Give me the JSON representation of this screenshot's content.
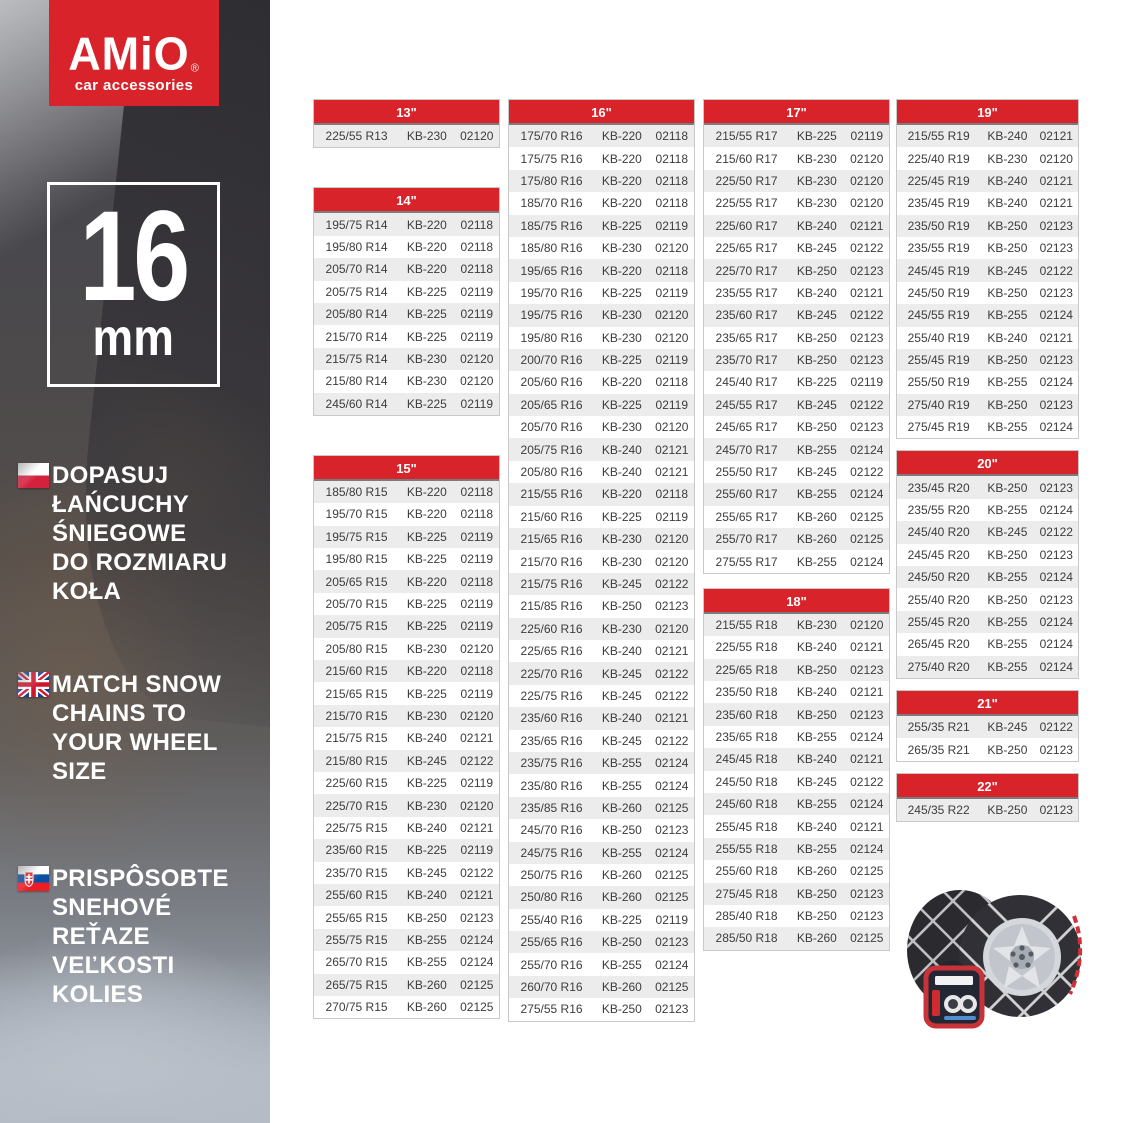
{
  "colors": {
    "brand_red": "#d8232b",
    "row_alt": "#ececec",
    "cell_text": "#3c3c3c",
    "table_border": "#c9c9c9"
  },
  "logo": {
    "name": "AMiO",
    "registered": "®",
    "subtitle": "car accessories"
  },
  "badge": {
    "value": "16",
    "unit": "mm"
  },
  "sidebar": {
    "messages": [
      {
        "lang": "pl",
        "flag": "poland-flag",
        "lines": [
          "DOPASUJ",
          "ŁAŃCUCHY",
          "ŚNIEGOWE",
          "DO ROZMIARU",
          "KOŁA"
        ]
      },
      {
        "lang": "en",
        "flag": "uk-flag",
        "lines": [
          "MATCH SNOW",
          "CHAINS TO",
          "YOUR WHEEL",
          "SIZE"
        ]
      },
      {
        "lang": "sk",
        "flag": "slovakia-flag",
        "lines": [
          "PRISPÔSOBTE",
          "SNEHOVÉ",
          "REŤAZE",
          "VEĽKOSTI",
          "KOLIES"
        ]
      }
    ]
  },
  "tables": [
    {
      "title": "13\"",
      "column": 1,
      "rows": [
        [
          "225/55 R13",
          "KB-230",
          "02120"
        ]
      ]
    },
    {
      "title": "14\"",
      "column": 1,
      "rows": [
        [
          "195/75 R14",
          "KB-220",
          "02118"
        ],
        [
          "195/80 R14",
          "KB-220",
          "02118"
        ],
        [
          "205/70 R14",
          "KB-220",
          "02118"
        ],
        [
          "205/75 R14",
          "KB-225",
          "02119"
        ],
        [
          "205/80 R14",
          "KB-225",
          "02119"
        ],
        [
          "215/70 R14",
          "KB-225",
          "02119"
        ],
        [
          "215/75 R14",
          "KB-230",
          "02120"
        ],
        [
          "215/80 R14",
          "KB-230",
          "02120"
        ],
        [
          "245/60 R14",
          "KB-225",
          "02119"
        ]
      ]
    },
    {
      "title": "15\"",
      "column": 1,
      "rows": [
        [
          "185/80 R15",
          "KB-220",
          "02118"
        ],
        [
          "195/70 R15",
          "KB-220",
          "02118"
        ],
        [
          "195/75 R15",
          "KB-225",
          "02119"
        ],
        [
          "195/80 R15",
          "KB-225",
          "02119"
        ],
        [
          "205/65 R15",
          "KB-220",
          "02118"
        ],
        [
          "205/70 R15",
          "KB-225",
          "02119"
        ],
        [
          "205/75 R15",
          "KB-225",
          "02119"
        ],
        [
          "205/80 R15",
          "KB-230",
          "02120"
        ],
        [
          "215/60 R15",
          "KB-220",
          "02118"
        ],
        [
          "215/65 R15",
          "KB-225",
          "02119"
        ],
        [
          "215/70 R15",
          "KB-230",
          "02120"
        ],
        [
          "215/75 R15",
          "KB-240",
          "02121"
        ],
        [
          "215/80 R15",
          "KB-245",
          "02122"
        ],
        [
          "225/60 R15",
          "KB-225",
          "02119"
        ],
        [
          "225/70 R15",
          "KB-230",
          "02120"
        ],
        [
          "225/75 R15",
          "KB-240",
          "02121"
        ],
        [
          "235/60 R15",
          "KB-225",
          "02119"
        ],
        [
          "235/70 R15",
          "KB-245",
          "02122"
        ],
        [
          "255/60 R15",
          "KB-240",
          "02121"
        ],
        [
          "255/65 R15",
          "KB-250",
          "02123"
        ],
        [
          "255/75 R15",
          "KB-255",
          "02124"
        ],
        [
          "265/70 R15",
          "KB-255",
          "02124"
        ],
        [
          "265/75 R15",
          "KB-260",
          "02125"
        ],
        [
          "270/75 R15",
          "KB-260",
          "02125"
        ]
      ]
    },
    {
      "title": "16\"",
      "column": 2,
      "rows": [
        [
          "175/70 R16",
          "KB-220",
          "02118"
        ],
        [
          "175/75 R16",
          "KB-220",
          "02118"
        ],
        [
          "175/80 R16",
          "KB-220",
          "02118"
        ],
        [
          "185/70 R16",
          "KB-220",
          "02118"
        ],
        [
          "185/75 R16",
          "KB-225",
          "02119"
        ],
        [
          "185/80 R16",
          "KB-230",
          "02120"
        ],
        [
          "195/65 R16",
          "KB-220",
          "02118"
        ],
        [
          "195/70 R16",
          "KB-225",
          "02119"
        ],
        [
          "195/75 R16",
          "KB-230",
          "02120"
        ],
        [
          "195/80 R16",
          "KB-230",
          "02120"
        ],
        [
          "200/70 R16",
          "KB-225",
          "02119"
        ],
        [
          "205/60 R16",
          "KB-220",
          "02118"
        ],
        [
          "205/65 R16",
          "KB-225",
          "02119"
        ],
        [
          "205/70 R16",
          "KB-230",
          "02120"
        ],
        [
          "205/75 R16",
          "KB-240",
          "02121"
        ],
        [
          "205/80 R16",
          "KB-240",
          "02121"
        ],
        [
          "215/55 R16",
          "KB-220",
          "02118"
        ],
        [
          "215/60 R16",
          "KB-225",
          "02119"
        ],
        [
          "215/65 R16",
          "KB-230",
          "02120"
        ],
        [
          "215/70 R16",
          "KB-230",
          "02120"
        ],
        [
          "215/75 R16",
          "KB-245",
          "02122"
        ],
        [
          "215/85 R16",
          "KB-250",
          "02123"
        ],
        [
          "225/60 R16",
          "KB-230",
          "02120"
        ],
        [
          "225/65 R16",
          "KB-240",
          "02121"
        ],
        [
          "225/70 R16",
          "KB-245",
          "02122"
        ],
        [
          "225/75 R16",
          "KB-245",
          "02122"
        ],
        [
          "235/60 R16",
          "KB-240",
          "02121"
        ],
        [
          "235/65 R16",
          "KB-245",
          "02122"
        ],
        [
          "235/75 R16",
          "KB-255",
          "02124"
        ],
        [
          "235/80 R16",
          "KB-255",
          "02124"
        ],
        [
          "235/85 R16",
          "KB-260",
          "02125"
        ],
        [
          "245/70 R16",
          "KB-250",
          "02123"
        ],
        [
          "245/75 R16",
          "KB-255",
          "02124"
        ],
        [
          "250/75 R16",
          "KB-260",
          "02125"
        ],
        [
          "250/80 R16",
          "KB-260",
          "02125"
        ],
        [
          "255/40 R16",
          "KB-225",
          "02119"
        ],
        [
          "255/65 R16",
          "KB-250",
          "02123"
        ],
        [
          "255/70 R16",
          "KB-255",
          "02124"
        ],
        [
          "260/70 R16",
          "KB-260",
          "02125"
        ],
        [
          "275/55 R16",
          "KB-250",
          "02123"
        ]
      ]
    },
    {
      "title": "17\"",
      "column": 3,
      "rows": [
        [
          "215/55 R17",
          "KB-225",
          "02119"
        ],
        [
          "215/60 R17",
          "KB-230",
          "02120"
        ],
        [
          "225/50 R17",
          "KB-230",
          "02120"
        ],
        [
          "225/55 R17",
          "KB-230",
          "02120"
        ],
        [
          "225/60 R17",
          "KB-240",
          "02121"
        ],
        [
          "225/65 R17",
          "KB-245",
          "02122"
        ],
        [
          "225/70 R17",
          "KB-250",
          "02123"
        ],
        [
          "235/55 R17",
          "KB-240",
          "02121"
        ],
        [
          "235/60 R17",
          "KB-245",
          "02122"
        ],
        [
          "235/65 R17",
          "KB-250",
          "02123"
        ],
        [
          "235/70 R17",
          "KB-250",
          "02123"
        ],
        [
          "245/40 R17",
          "KB-225",
          "02119"
        ],
        [
          "245/55 R17",
          "KB-245",
          "02122"
        ],
        [
          "245/65 R17",
          "KB-250",
          "02123"
        ],
        [
          "245/70 R17",
          "KB-255",
          "02124"
        ],
        [
          "255/50 R17",
          "KB-245",
          "02122"
        ],
        [
          "255/60 R17",
          "KB-255",
          "02124"
        ],
        [
          "255/65 R17",
          "KB-260",
          "02125"
        ],
        [
          "255/70 R17",
          "KB-260",
          "02125"
        ],
        [
          "275/55 R17",
          "KB-255",
          "02124"
        ]
      ]
    },
    {
      "title": "18\"",
      "column": 3,
      "rows": [
        [
          "215/55 R18",
          "KB-230",
          "02120"
        ],
        [
          "225/55 R18",
          "KB-240",
          "02121"
        ],
        [
          "225/65 R18",
          "KB-250",
          "02123"
        ],
        [
          "235/50 R18",
          "KB-240",
          "02121"
        ],
        [
          "235/60 R18",
          "KB-250",
          "02123"
        ],
        [
          "235/65 R18",
          "KB-255",
          "02124"
        ],
        [
          "245/45 R18",
          "KB-240",
          "02121"
        ],
        [
          "245/50 R18",
          "KB-245",
          "02122"
        ],
        [
          "245/60 R18",
          "KB-255",
          "02124"
        ],
        [
          "255/45 R18",
          "KB-240",
          "02121"
        ],
        [
          "255/55 R18",
          "KB-255",
          "02124"
        ],
        [
          "255/60 R18",
          "KB-260",
          "02125"
        ],
        [
          "275/45 R18",
          "KB-250",
          "02123"
        ],
        [
          "285/40 R18",
          "KB-250",
          "02123"
        ],
        [
          "285/50 R18",
          "KB-260",
          "02125"
        ]
      ]
    },
    {
      "title": "19\"",
      "column": 4,
      "rows": [
        [
          "215/55 R19",
          "KB-240",
          "02121"
        ],
        [
          "225/40 R19",
          "KB-230",
          "02120"
        ],
        [
          "225/45 R19",
          "KB-240",
          "02121"
        ],
        [
          "235/45 R19",
          "KB-240",
          "02121"
        ],
        [
          "235/50 R19",
          "KB-250",
          "02123"
        ],
        [
          "235/55 R19",
          "KB-250",
          "02123"
        ],
        [
          "245/45 R19",
          "KB-245",
          "02122"
        ],
        [
          "245/50 R19",
          "KB-250",
          "02123"
        ],
        [
          "245/55 R19",
          "KB-255",
          "02124"
        ],
        [
          "255/40 R19",
          "KB-240",
          "02121"
        ],
        [
          "255/45 R19",
          "KB-250",
          "02123"
        ],
        [
          "255/50 R19",
          "KB-255",
          "02124"
        ],
        [
          "275/40 R19",
          "KB-250",
          "02123"
        ],
        [
          "275/45 R19",
          "KB-255",
          "02124"
        ]
      ]
    },
    {
      "title": "20\"",
      "column": 4,
      "rows": [
        [
          "235/45 R20",
          "KB-250",
          "02123"
        ],
        [
          "235/55 R20",
          "KB-255",
          "02124"
        ],
        [
          "245/40 R20",
          "KB-245",
          "02122"
        ],
        [
          "245/45 R20",
          "KB-250",
          "02123"
        ],
        [
          "245/50 R20",
          "KB-255",
          "02124"
        ],
        [
          "255/40 R20",
          "KB-250",
          "02123"
        ],
        [
          "255/45 R20",
          "KB-255",
          "02124"
        ],
        [
          "265/45 R20",
          "KB-255",
          "02124"
        ],
        [
          "275/40 R20",
          "KB-255",
          "02124"
        ]
      ]
    },
    {
      "title": "21\"",
      "column": 4,
      "rows": [
        [
          "255/35 R21",
          "KB-245",
          "02122"
        ],
        [
          "265/35 R21",
          "KB-250",
          "02123"
        ]
      ]
    },
    {
      "title": "22\"",
      "column": 4,
      "rows": [
        [
          "245/35 R22",
          "KB-250",
          "02123"
        ]
      ]
    }
  ],
  "product_image": {
    "description": "snow chains mounted on alloy wheel with carry bag"
  }
}
